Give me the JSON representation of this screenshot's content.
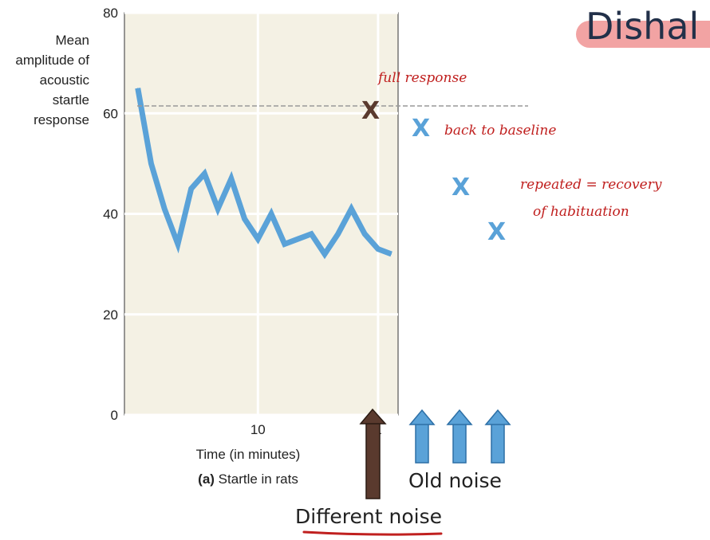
{
  "chart_data": {
    "type": "line",
    "ylabel": "Mean amplitude of acoustic startle response",
    "xlabel": "Time (in minutes)",
    "caption_bold": "(a)",
    "caption_rest": " Startle in rats",
    "ylim": [
      0,
      80
    ],
    "yticks": [
      0,
      20,
      40,
      60,
      80
    ],
    "xlim": [
      0,
      20.5
    ],
    "xticks": [
      10
    ],
    "tick_label_19": "1",
    "background_color": "#f4f1e4",
    "grid": true,
    "series": [
      {
        "color": "#5aa2d8",
        "x": [
          1,
          2,
          3,
          4,
          5,
          6,
          7,
          8,
          9,
          10,
          11,
          12,
          13,
          14,
          15,
          16,
          17,
          18,
          19,
          20
        ],
        "y": [
          65,
          50,
          41,
          34,
          45,
          48,
          41,
          47,
          39,
          35,
          40,
          34,
          35,
          36,
          32,
          36,
          41,
          36,
          33,
          32
        ]
      }
    ]
  },
  "annotations": {
    "title": "Dishal",
    "full_response": "full response",
    "back_to_baseline": "back to baseline",
    "repeated_line1": "repeated = recovery",
    "repeated_line2": "of habituation",
    "old_noise": "Old noise",
    "different_noise": "Different noise",
    "x_symbol": "X",
    "colors": {
      "brown": "#5a3a2e",
      "blue": "#5aa2d8",
      "red": "#c0201f"
    }
  }
}
